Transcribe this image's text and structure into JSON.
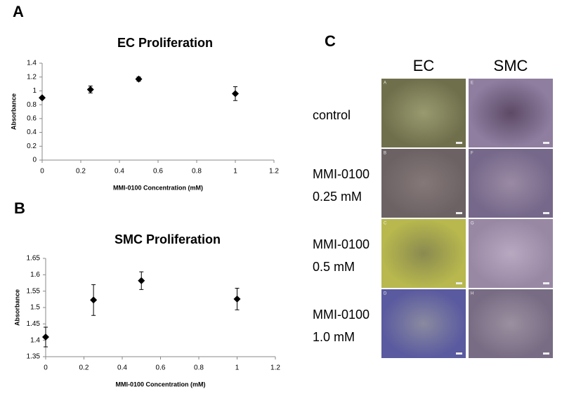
{
  "chart_data": [
    {
      "type": "scatter",
      "panel_label": "A",
      "title": "EC Proliferation",
      "x_label": "MMI-0100 Concentration (mM)",
      "y_label": "Absorbance",
      "x": [
        0,
        0.25,
        0.5,
        1
      ],
      "values": [
        0.9,
        1.02,
        1.17,
        0.96
      ],
      "errors": [
        0.02,
        0.05,
        0.03,
        0.1
      ],
      "color": "#000000",
      "xlim": [
        0,
        1.2
      ],
      "xticks": [
        0,
        0.2,
        0.4,
        0.6,
        0.8,
        1,
        1.2
      ],
      "ylim": [
        0,
        1.4
      ],
      "yticks": [
        0,
        0.2,
        0.4,
        0.6,
        0.8,
        1,
        1.2,
        1.4
      ],
      "grid": false
    },
    {
      "type": "scatter",
      "panel_label": "B",
      "title": "SMC Proliferation",
      "x_label": "MMI-0100 Concentration (mM)",
      "y_label": "Absorbance",
      "x": [
        0,
        0.25,
        0.5,
        1
      ],
      "values": [
        1.41,
        1.523,
        1.582,
        1.526
      ],
      "errors": [
        0.03,
        0.047,
        0.027,
        0.033
      ],
      "color": "#000000",
      "xlim": [
        0,
        1.2
      ],
      "xticks": [
        0,
        0.2,
        0.4,
        0.6,
        0.8,
        1,
        1.2
      ],
      "ylim": [
        1.35,
        1.65
      ],
      "yticks": [
        1.35,
        1.4,
        1.45,
        1.5,
        1.55,
        1.6,
        1.65
      ],
      "grid": false
    }
  ],
  "image_panel": {
    "panel_label": "C",
    "columns": [
      "EC",
      "SMC"
    ],
    "rows": [
      [
        "control"
      ],
      [
        "MMI-0100",
        "0.25 mM"
      ],
      [
        "MMI-0100",
        "0.5 mM"
      ],
      [
        "MMI-0100",
        "1.0 mM"
      ]
    ],
    "tile_letters": [
      [
        "A",
        "E"
      ],
      [
        "B",
        "F"
      ],
      [
        "C",
        "G"
      ],
      [
        "D",
        "H"
      ]
    ]
  }
}
